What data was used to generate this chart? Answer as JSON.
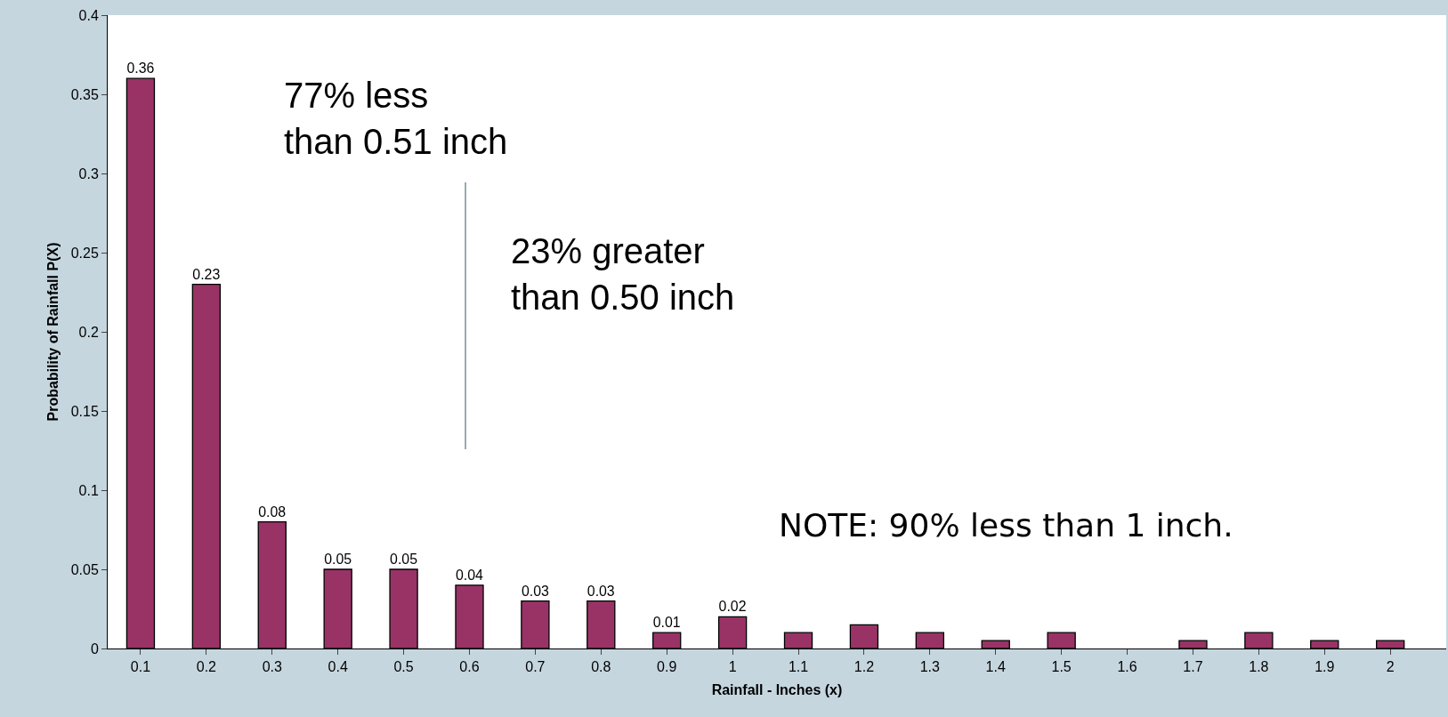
{
  "chart_data": {
    "type": "bar",
    "categories": [
      "0.1",
      "0.2",
      "0.3",
      "0.4",
      "0.5",
      "0.6",
      "0.7",
      "0.8",
      "0.9",
      "1",
      "1.1",
      "1.2",
      "1.3",
      "1.4",
      "1.5",
      "1.6",
      "1.7",
      "1.8",
      "1.9",
      "2"
    ],
    "values": [
      0.36,
      0.23,
      0.08,
      0.05,
      0.05,
      0.04,
      0.03,
      0.03,
      0.01,
      0.02,
      0.01,
      0.015,
      0.01,
      0.005,
      0.01,
      null,
      0.005,
      0.01,
      0.005,
      0.005
    ],
    "value_labels": [
      "0.36",
      "0.23",
      "0.08",
      "0.05",
      "0.05",
      "0.04",
      "0.03",
      "0.03",
      "0.01",
      "0.02",
      null,
      null,
      null,
      null,
      null,
      null,
      null,
      null,
      null,
      null
    ],
    "color": "#993366",
    "xlabel": "Rainfall - Inches (x)",
    "ylabel": "Probability of Rainfall P(X)",
    "ylim": [
      0,
      0.4
    ],
    "yticks": [
      0,
      0.05,
      0.1,
      0.15,
      0.2,
      0.25,
      0.3,
      0.35,
      0.4
    ],
    "annotations": [
      "77% less\nthan 0.51 inch",
      "23% greater\nthan 0.50 inch",
      "NOTE: 90% less than 1 inch."
    ],
    "grid": false,
    "legend": false
  }
}
